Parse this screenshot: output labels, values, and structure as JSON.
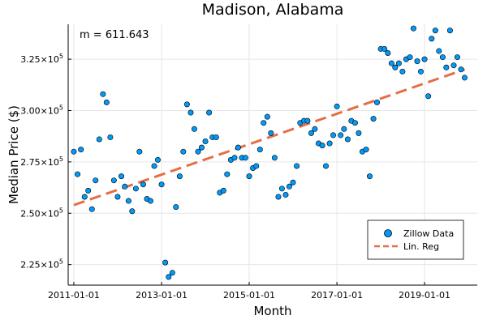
{
  "chart_data": {
    "type": "scatter",
    "title": "Madison, Alabama",
    "xlabel": "Month",
    "ylabel": "Median Price ($)",
    "annotation": "m = 611.643",
    "x_ticks": [
      {
        "value": "2011-01-01",
        "label": "2011-01-01"
      },
      {
        "value": "2013-01-01",
        "label": "2013-01-01"
      },
      {
        "value": "2015-01-01",
        "label": "2015-01-01"
      },
      {
        "value": "2017-01-01",
        "label": "2017-01-01"
      },
      {
        "value": "2019-01-01",
        "label": "2019-01-01"
      }
    ],
    "y_ticks": [
      {
        "value": 225000,
        "mantissa": "2.25",
        "exponent": "5"
      },
      {
        "value": 250000,
        "mantissa": "2.50",
        "exponent": "5"
      },
      {
        "value": 275000,
        "mantissa": "2.75",
        "exponent": "5"
      },
      {
        "value": 300000,
        "mantissa": "3.00",
        "exponent": "5"
      },
      {
        "value": 325000,
        "mantissa": "3.25",
        "exponent": "5"
      }
    ],
    "xlim": [
      "2010-11-15",
      "2020-03-15"
    ],
    "ylim": [
      215000,
      342000
    ],
    "grid": true,
    "legend_position": "bottom-right",
    "series": [
      {
        "name": "Zillow Data",
        "kind": "scatter",
        "color": "#009AFA",
        "x": [
          "2011-01-01",
          "2011-02-01",
          "2011-03-01",
          "2011-04-01",
          "2011-05-01",
          "2011-06-01",
          "2011-07-01",
          "2011-08-01",
          "2011-09-01",
          "2011-10-01",
          "2011-11-01",
          "2011-12-01",
          "2012-01-01",
          "2012-02-01",
          "2012-03-01",
          "2012-04-01",
          "2012-05-01",
          "2012-06-01",
          "2012-07-01",
          "2012-08-01",
          "2012-09-01",
          "2012-10-01",
          "2012-11-01",
          "2012-12-01",
          "2013-01-01",
          "2013-02-01",
          "2013-03-01",
          "2013-04-01",
          "2013-05-01",
          "2013-06-01",
          "2013-07-01",
          "2013-08-01",
          "2013-09-01",
          "2013-10-01",
          "2013-11-01",
          "2013-12-01",
          "2014-01-01",
          "2014-02-01",
          "2014-03-01",
          "2014-04-01",
          "2014-05-01",
          "2014-06-01",
          "2014-07-01",
          "2014-08-01",
          "2014-09-01",
          "2014-10-01",
          "2014-11-01",
          "2014-12-01",
          "2015-01-01",
          "2015-02-01",
          "2015-03-01",
          "2015-04-01",
          "2015-05-01",
          "2015-06-01",
          "2015-07-01",
          "2015-08-01",
          "2015-09-01",
          "2015-10-01",
          "2015-11-01",
          "2015-12-01",
          "2016-01-01",
          "2016-02-01",
          "2016-03-01",
          "2016-04-01",
          "2016-05-01",
          "2016-06-01",
          "2016-07-01",
          "2016-08-01",
          "2016-09-01",
          "2016-10-01",
          "2016-11-01",
          "2016-12-01",
          "2017-01-01",
          "2017-02-01",
          "2017-03-01",
          "2017-04-01",
          "2017-05-01",
          "2017-06-01",
          "2017-07-01",
          "2017-08-01",
          "2017-09-01",
          "2017-10-01",
          "2017-11-01",
          "2017-12-01",
          "2018-01-01",
          "2018-02-01",
          "2018-03-01",
          "2018-04-01",
          "2018-05-01",
          "2018-06-01",
          "2018-07-01",
          "2018-08-01",
          "2018-09-01",
          "2018-10-01",
          "2018-11-01",
          "2018-12-01",
          "2019-01-01",
          "2019-02-01",
          "2019-03-01",
          "2019-04-01",
          "2019-05-01",
          "2019-06-01",
          "2019-07-01",
          "2019-08-01",
          "2019-09-01",
          "2019-10-01",
          "2019-11-01",
          "2019-12-01"
        ],
        "y": [
          280000,
          269000,
          281000,
          258000,
          261000,
          252000,
          266000,
          286000,
          308000,
          304000,
          287000,
          266000,
          258000,
          268000,
          263000,
          256000,
          251000,
          262000,
          280000,
          264000,
          257000,
          256000,
          273000,
          276000,
          264000,
          226000,
          219000,
          221000,
          253000,
          268000,
          280000,
          303000,
          299000,
          291000,
          280000,
          282000,
          285000,
          299000,
          287000,
          287000,
          260000,
          261000,
          269000,
          276000,
          277000,
          282000,
          277000,
          277000,
          268000,
          272000,
          273000,
          281000,
          294000,
          297000,
          289000,
          277000,
          258000,
          262000,
          259000,
          263000,
          265000,
          273000,
          294000,
          295000,
          295000,
          289000,
          291000,
          284000,
          283000,
          273000,
          284000,
          288000,
          302000,
          288000,
          291000,
          286000,
          295000,
          294000,
          289000,
          280000,
          281000,
          268000,
          296000,
          304000,
          330000,
          330000,
          328000,
          323000,
          321000,
          323000,
          319000,
          325000,
          326000,
          340000,
          324000,
          319000,
          325000,
          307000,
          335000,
          339000,
          329000,
          326000,
          321000,
          339000,
          322000,
          326000,
          320000,
          316000
        ]
      },
      {
        "name": "Lin. Reg",
        "kind": "line",
        "color": "#E26F46",
        "dashed": true,
        "x": [
          "2011-01-01",
          "2019-12-01"
        ],
        "y": [
          254000,
          320000
        ]
      }
    ]
  }
}
